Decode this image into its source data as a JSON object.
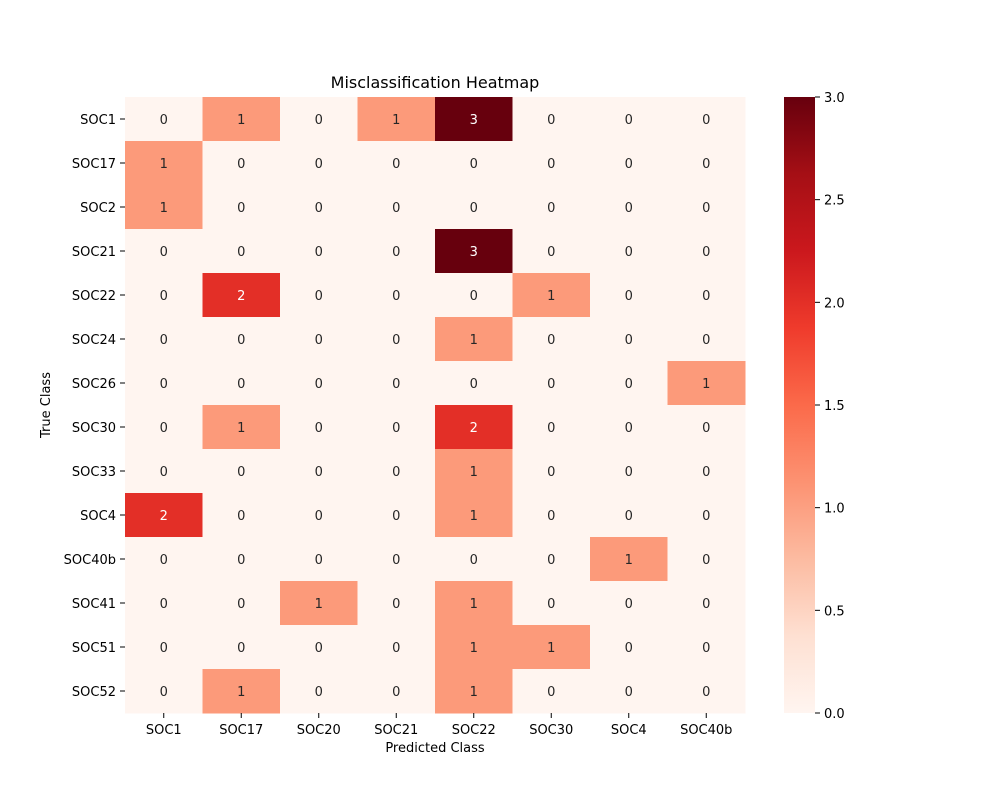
{
  "chart_data": {
    "type": "heatmap",
    "title": "Misclassification Heatmap",
    "xlabel": "Predicted Class",
    "ylabel": "True Class",
    "x_categories": [
      "SOC1",
      "SOC17",
      "SOC20",
      "SOC21",
      "SOC22",
      "SOC30",
      "SOC4",
      "SOC40b"
    ],
    "y_categories": [
      "SOC1",
      "SOC17",
      "SOC2",
      "SOC21",
      "SOC22",
      "SOC24",
      "SOC26",
      "SOC30",
      "SOC33",
      "SOC4",
      "SOC40b",
      "SOC41",
      "SOC51",
      "SOC52"
    ],
    "values": [
      [
        0,
        1,
        0,
        1,
        3,
        0,
        0,
        0
      ],
      [
        1,
        0,
        0,
        0,
        0,
        0,
        0,
        0
      ],
      [
        1,
        0,
        0,
        0,
        0,
        0,
        0,
        0
      ],
      [
        0,
        0,
        0,
        0,
        3,
        0,
        0,
        0
      ],
      [
        0,
        2,
        0,
        0,
        0,
        1,
        0,
        0
      ],
      [
        0,
        0,
        0,
        0,
        1,
        0,
        0,
        0
      ],
      [
        0,
        0,
        0,
        0,
        0,
        0,
        0,
        1
      ],
      [
        0,
        1,
        0,
        0,
        2,
        0,
        0,
        0
      ],
      [
        0,
        0,
        0,
        0,
        1,
        0,
        0,
        0
      ],
      [
        2,
        0,
        0,
        0,
        1,
        0,
        0,
        0
      ],
      [
        0,
        0,
        0,
        0,
        0,
        0,
        1,
        0
      ],
      [
        0,
        0,
        1,
        0,
        1,
        0,
        0,
        0
      ],
      [
        0,
        0,
        0,
        0,
        1,
        1,
        0,
        0
      ],
      [
        0,
        1,
        0,
        0,
        1,
        0,
        0,
        0
      ]
    ],
    "colorbar": {
      "min": 0,
      "max": 3,
      "ticks": [
        "0.0",
        "0.5",
        "1.0",
        "1.5",
        "2.0",
        "2.5",
        "3.0"
      ],
      "colormap": "Reds"
    },
    "colors": {
      "0": "#fff5f0",
      "1": "#fc9a7a",
      "2": "#e32f27",
      "3": "#67000d"
    },
    "grid": false
  }
}
